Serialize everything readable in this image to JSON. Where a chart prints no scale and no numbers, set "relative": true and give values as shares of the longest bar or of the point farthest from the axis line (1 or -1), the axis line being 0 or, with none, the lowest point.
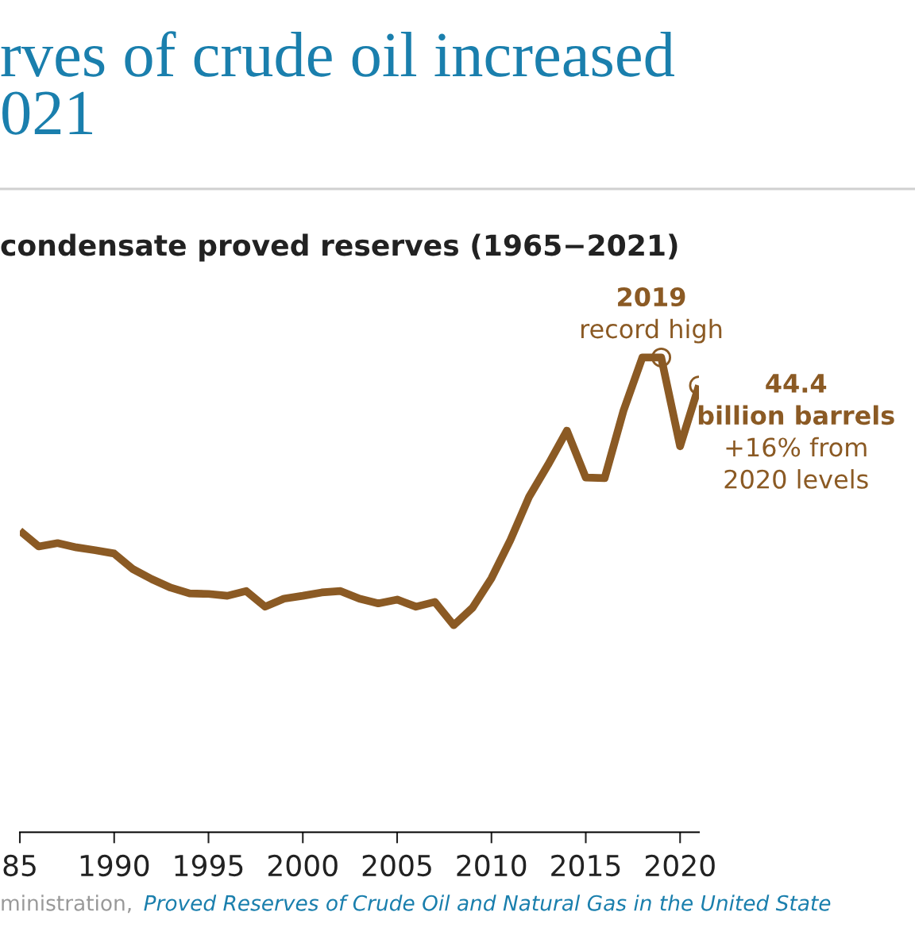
{
  "chart_data": {
    "type": "line",
    "title": "rves of crude oil increased\n021",
    "subtitle": "condensate proved reserves (1965−2021)",
    "relative": true,
    "x": [
      1985,
      1986,
      1987,
      1988,
      1989,
      1990,
      1991,
      1992,
      1993,
      1994,
      1995,
      1996,
      1997,
      1998,
      1999,
      2000,
      2001,
      2002,
      2003,
      2004,
      2005,
      2006,
      2007,
      2008,
      2009,
      2010,
      2011,
      2012,
      2013,
      2014,
      2015,
      2016,
      2017,
      2018,
      2019,
      2020,
      2021
    ],
    "series": [
      {
        "color": "#8b5a24",
        "values": [
          0.635,
          0.602,
          0.609,
          0.6,
          0.594,
          0.587,
          0.554,
          0.533,
          0.515,
          0.503,
          0.502,
          0.498,
          0.508,
          0.475,
          0.492,
          0.498,
          0.505,
          0.508,
          0.492,
          0.482,
          0.49,
          0.475,
          0.485,
          0.436,
          0.473,
          0.535,
          0.615,
          0.707,
          0.774,
          0.846,
          0.747,
          0.746,
          0.888,
          1,
          1,
          0.813,
          0.941
        ]
      }
    ],
    "xlim": [
      1985,
      2021
    ],
    "xticks": [
      {
        "value": 1985,
        "label": "85"
      },
      1990,
      1995,
      2000,
      2005,
      2010,
      2015,
      2020
    ],
    "annotations": [
      {
        "text": "2019\nrecord high",
        "x": 2019,
        "y": 1
      },
      {
        "text": "44.4\nbillion barrels\n+16% from\n2020 levels",
        "x": 2021,
        "y": 0.941
      },
      "ministration,",
      "Proved Reserves of Crude Oil and Natural Gas in the United State"
    ],
    "grid": false,
    "legend": false,
    "marker": "none",
    "line_style": "solid"
  }
}
